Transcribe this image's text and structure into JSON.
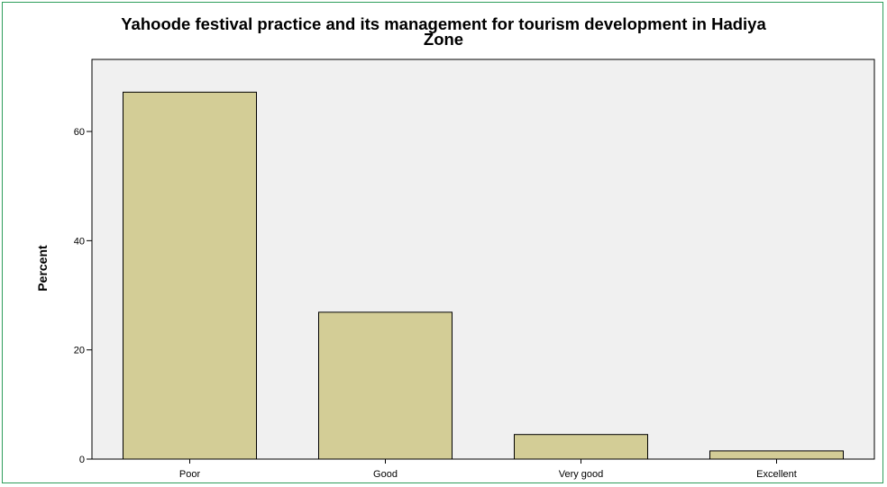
{
  "chart_data": {
    "type": "bar",
    "title": "Yahoode festival practice and its management for tourism development in Hadiya Zone",
    "title_line1": "Yahoode festival practice and its management for tourism development in Hadiya",
    "title_line2": "Zone",
    "xlabel": "",
    "ylabel": "Percent",
    "categories": [
      "Poor",
      "Good",
      "Very good",
      "Excellent"
    ],
    "values": [
      67.2,
      26.9,
      4.5,
      1.5
    ],
    "ylim": [
      0,
      73.2
    ],
    "yticks": [
      0,
      20,
      40,
      60
    ],
    "grid": false,
    "legend": "none",
    "colors": {
      "bar": "#d3cd96",
      "plot_bg": "#f0f0f0",
      "frame": "#2e9e5b"
    }
  }
}
